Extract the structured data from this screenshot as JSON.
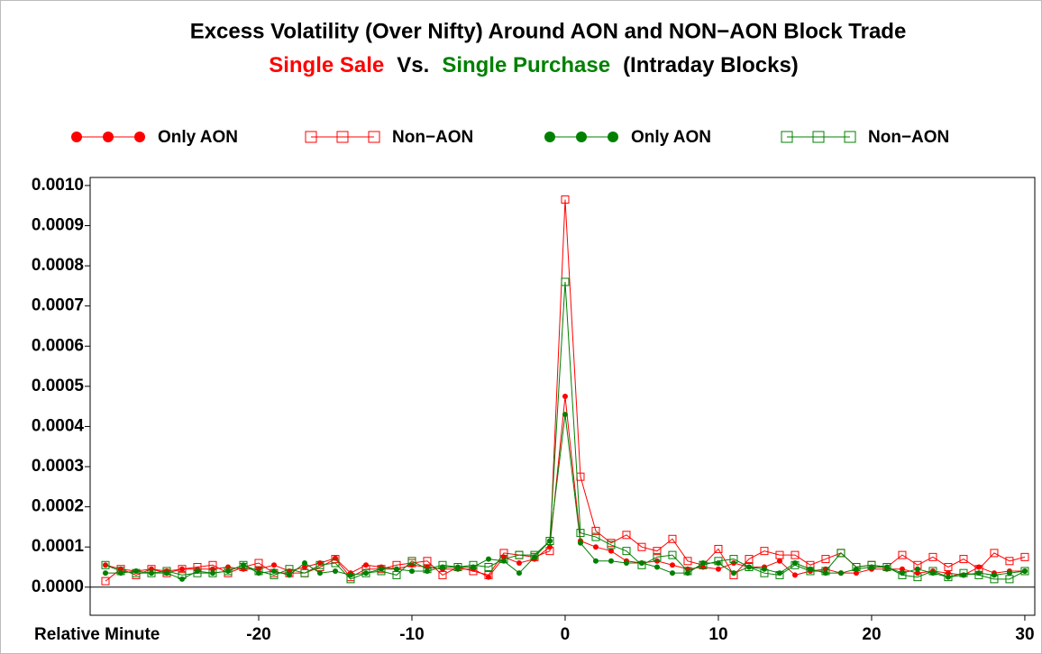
{
  "chart_data": {
    "type": "line",
    "title": "Excess Volatility (Over Nifty) Around AON and NON−AON Block Trade",
    "subtitle": [
      {
        "text": "Single Sale",
        "color": "#ff0000"
      },
      {
        "text": "Vs.",
        "color": "#000000"
      },
      {
        "text": "Single Purchase",
        "color": "#008000"
      },
      {
        "text": "(Intraday Blocks)",
        "color": "#000000"
      }
    ],
    "x_label": "Relative Minute",
    "x": [
      -30,
      -29,
      -28,
      -27,
      -26,
      -25,
      -24,
      -23,
      -22,
      -21,
      -20,
      -19,
      -18,
      -17,
      -16,
      -15,
      -14,
      -13,
      -12,
      -11,
      -10,
      -9,
      -8,
      -7,
      -6,
      -5,
      -4,
      -3,
      -2,
      -1,
      0,
      1,
      2,
      3,
      4,
      5,
      6,
      7,
      8,
      9,
      10,
      11,
      12,
      13,
      14,
      15,
      16,
      17,
      18,
      19,
      20,
      21,
      22,
      23,
      24,
      25,
      26,
      27,
      28,
      29,
      30
    ],
    "series": [
      {
        "name": "Only AON",
        "color": "#ff0000",
        "marker": "circle",
        "values": [
          5.5e-05,
          4.5e-05,
          4e-05,
          4.5e-05,
          4e-05,
          4.5e-05,
          4.5e-05,
          4.5e-05,
          5e-05,
          4.5e-05,
          4.5e-05,
          5.5e-05,
          4e-05,
          5e-05,
          6e-05,
          7.2e-05,
          3.5e-05,
          5.5e-05,
          5e-05,
          4.5e-05,
          5.5e-05,
          5e-05,
          4.5e-05,
          4.5e-05,
          4.5e-05,
          2.5e-05,
          7.5e-05,
          6e-05,
          7e-05,
          0.0001,
          0.000475,
          0.000115,
          0.0001,
          9e-05,
          6.5e-05,
          6e-05,
          6.5e-05,
          5.5e-05,
          4.5e-05,
          5e-05,
          4.5e-05,
          6e-05,
          5e-05,
          5e-05,
          6.5e-05,
          3e-05,
          4e-05,
          4.5e-05,
          3.5e-05,
          3.5e-05,
          4.5e-05,
          4.5e-05,
          4.5e-05,
          3.5e-05,
          4e-05,
          3.5e-05,
          3e-05,
          5e-05,
          3.5e-05,
          4e-05,
          4e-05
        ]
      },
      {
        "name": "Non−AON",
        "color": "#ff0000",
        "marker": "square",
        "values": [
          1.5e-05,
          4.5e-05,
          3e-05,
          4.5e-05,
          3.5e-05,
          4.5e-05,
          5e-05,
          5.5e-05,
          3.5e-05,
          5e-05,
          6e-05,
          3.5e-05,
          3.5e-05,
          3.5e-05,
          5e-05,
          7e-05,
          2.5e-05,
          4.5e-05,
          4.5e-05,
          5.5e-05,
          6e-05,
          6.5e-05,
          3e-05,
          5e-05,
          4e-05,
          3e-05,
          8.5e-05,
          8e-05,
          7.5e-05,
          9e-05,
          0.000965,
          0.000275,
          0.00014,
          0.00011,
          0.00013,
          0.0001,
          9e-05,
          0.00012,
          6.5e-05,
          5.5e-05,
          9.5e-05,
          3e-05,
          7e-05,
          9e-05,
          8e-05,
          8e-05,
          5.5e-05,
          7e-05,
          8.5e-05,
          5e-05,
          5.5e-05,
          5e-05,
          8e-05,
          5.5e-05,
          7.5e-05,
          5e-05,
          7e-05,
          4.5e-05,
          8.5e-05,
          6.5e-05,
          7.5e-05
        ]
      },
      {
        "name": "Only AON",
        "color": "#008000",
        "marker": "circle",
        "values": [
          3.5e-05,
          3.5e-05,
          4e-05,
          3.5e-05,
          3.5e-05,
          2e-05,
          4e-05,
          3.5e-05,
          4e-05,
          5.5e-05,
          3.5e-05,
          4e-05,
          3e-05,
          6e-05,
          3.5e-05,
          4e-05,
          3e-05,
          3.5e-05,
          4.5e-05,
          4.5e-05,
          4e-05,
          4e-05,
          5e-05,
          5e-05,
          5e-05,
          7e-05,
          6.5e-05,
          3.5e-05,
          7.5e-05,
          0.000115,
          0.00043,
          0.00011,
          6.5e-05,
          6.5e-05,
          6e-05,
          6e-05,
          5e-05,
          3.5e-05,
          3.5e-05,
          6e-05,
          6e-05,
          3.5e-05,
          5e-05,
          4.5e-05,
          3.5e-05,
          6e-05,
          4.5e-05,
          3.5e-05,
          3.5e-05,
          4.5e-05,
          5e-05,
          5e-05,
          3.5e-05,
          4.5e-05,
          3.5e-05,
          2.5e-05,
          3e-05,
          3.5e-05,
          3e-05,
          3.5e-05,
          4e-05
        ]
      },
      {
        "name": "Non−AON",
        "color": "#008000",
        "marker": "square",
        "values": [
          5.5e-05,
          4e-05,
          3.5e-05,
          3.5e-05,
          4e-05,
          3e-05,
          3.5e-05,
          3.5e-05,
          4e-05,
          5.5e-05,
          4e-05,
          3e-05,
          4.5e-05,
          3.5e-05,
          5.5e-05,
          6e-05,
          2e-05,
          3.5e-05,
          4e-05,
          3e-05,
          6.5e-05,
          4.5e-05,
          5.5e-05,
          5e-05,
          5.5e-05,
          5e-05,
          7e-05,
          8e-05,
          8e-05,
          0.000115,
          0.00076,
          0.000135,
          0.000125,
          0.000105,
          9e-05,
          5.5e-05,
          7.5e-05,
          8e-05,
          4e-05,
          5.5e-05,
          6.5e-05,
          7e-05,
          5e-05,
          3.5e-05,
          3e-05,
          5.5e-05,
          4e-05,
          4e-05,
          8.5e-05,
          5e-05,
          5.5e-05,
          5e-05,
          3e-05,
          2.5e-05,
          4e-05,
          2.5e-05,
          3.5e-05,
          3e-05,
          2e-05,
          2e-05,
          4e-05
        ]
      }
    ],
    "xlim": [
      -31,
      30.65
    ],
    "xticks": [
      -20,
      -10,
      0,
      10,
      20,
      30
    ],
    "ylim": [
      -7e-05,
      0.00102
    ],
    "yticks": [
      {
        "value": 0,
        "label": "0.0000"
      },
      {
        "value": 0.0001,
        "label": "0.0001"
      },
      {
        "value": 0.0002,
        "label": "0.0002"
      },
      {
        "value": 0.0003,
        "label": "0.0003"
      },
      {
        "value": 0.0004,
        "label": "0.0004"
      },
      {
        "value": 0.0005,
        "label": "0.0005"
      },
      {
        "value": 0.0006,
        "label": "0.0006"
      },
      {
        "value": 0.0007,
        "label": "0.0007"
      },
      {
        "value": 0.0008,
        "label": "0.0008"
      },
      {
        "value": 0.0009,
        "label": "0.0009"
      },
      {
        "value": 0.001,
        "label": "0.0010"
      }
    ],
    "reference_line": 0
  }
}
